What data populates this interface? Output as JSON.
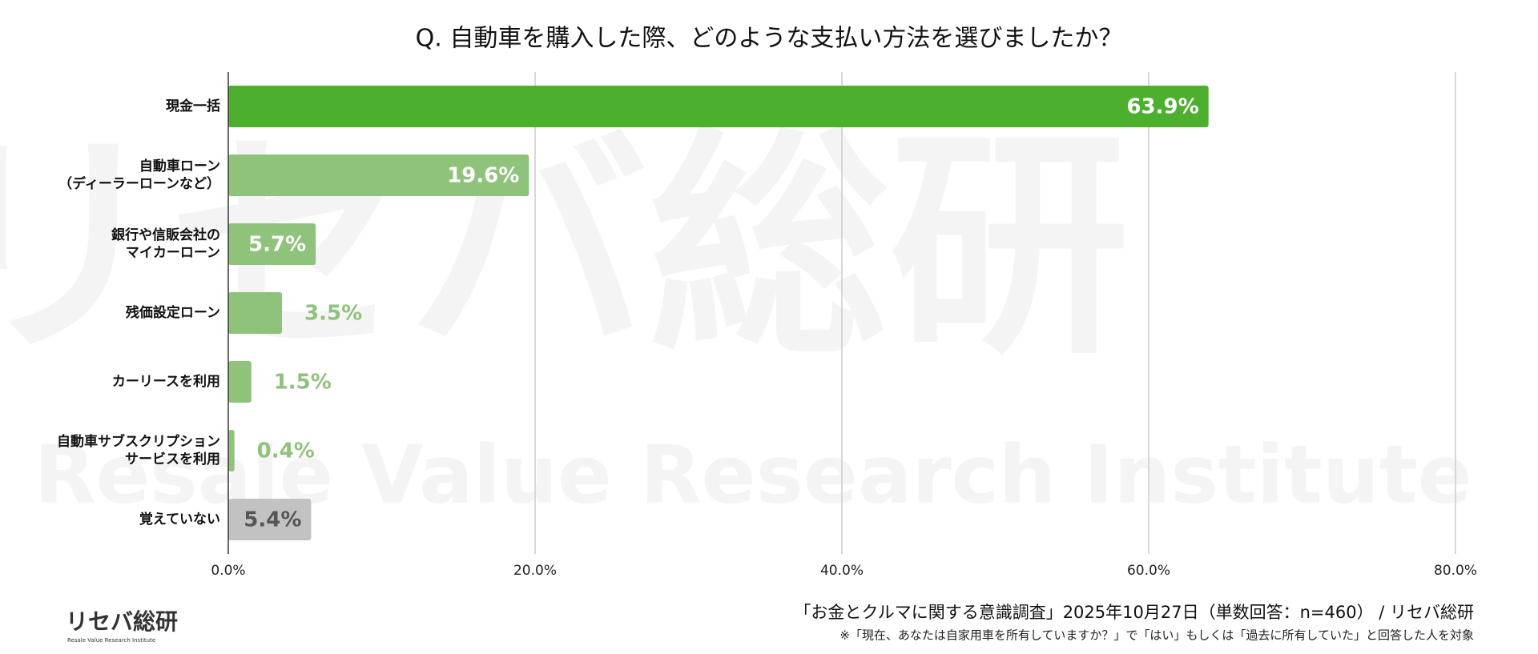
{
  "chart_data": {
    "type": "hbar",
    "title": "Q. 自動車を購入した際、どのような支払い方法を選びましたか？",
    "categories": [
      [
        "現金一括"
      ],
      [
        "自動車ローン",
        "（ディーラーローンなど）"
      ],
      [
        "銀行や信販会社の",
        "マイカーローン"
      ],
      [
        "残価設定ローン"
      ],
      [
        "カーリースを利用"
      ],
      [
        "自動車サブスクリプション",
        "サービスを利用"
      ],
      [
        "覚えていない"
      ]
    ],
    "values": [
      63.9,
      19.6,
      5.7,
      3.5,
      1.5,
      0.4,
      5.4
    ],
    "value_labels": [
      "63.9%",
      "19.6%",
      "5.7%",
      "3.5%",
      "1.5%",
      "0.4%",
      "5.4%"
    ],
    "colors": [
      "#4caf2d",
      "#8fc27b",
      "#8fc27b",
      "#8fc27b",
      "#8fc27b",
      "#8fc27b",
      "#c2c2c2"
    ],
    "xlim": [
      0,
      80
    ],
    "xticks": [
      {
        "value": 0,
        "label": "0.0%"
      },
      {
        "value": 20,
        "label": "20.0%"
      },
      {
        "value": 40,
        "label": "40.0%"
      },
      {
        "value": 60,
        "label": "60.0%"
      },
      {
        "value": 80,
        "label": "80.0%"
      }
    ],
    "grid": true,
    "source": "「お金とクルマに関する意識調査」2025年10月27日（単数回答：n=460） / リセバ総研",
    "note": "※「現在、あなたは自家用車を所有していますか？」で「はい」もしくは「過去に所有していた」と回答した人を対象",
    "logo": "リセバ総研",
    "logo_sub": "Resale Value Research Institute"
  }
}
